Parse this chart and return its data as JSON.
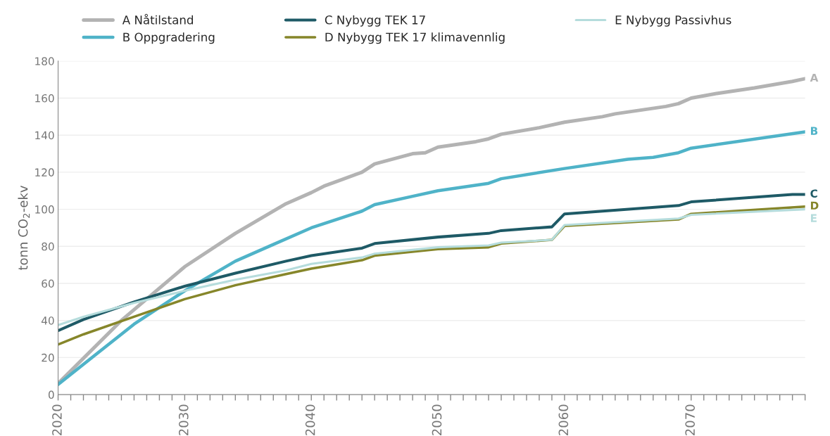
{
  "chart_data": {
    "type": "line",
    "ylabel": "tonn CO$_{2}$-ekv",
    "series": [
      {
        "name": "A Nåtilstand",
        "color": "#b3b3b3",
        "x": [
          2020,
          2025,
          2030,
          2034,
          2038,
          2040,
          2041,
          2044,
          2045,
          2048,
          2049,
          2050,
          2053,
          2054,
          2055,
          2058,
          2060,
          2063,
          2064,
          2068,
          2069,
          2070,
          2072,
          2075,
          2078,
          2079
        ],
        "values": [
          6,
          40,
          69,
          87,
          103,
          109,
          112.5,
          120,
          124.5,
          130,
          130.5,
          133.5,
          136.5,
          138,
          140.5,
          144,
          147,
          150,
          151.5,
          155.5,
          157,
          160,
          162.5,
          165.5,
          169,
          170.5
        ]
      },
      {
        "name": "B Oppgradering",
        "color": "#4fb3c8",
        "x": [
          2020,
          2026,
          2030,
          2034,
          2037,
          2040,
          2044,
          2045,
          2048,
          2050,
          2054,
          2055,
          2060,
          2065,
          2067,
          2069,
          2070,
          2079
        ],
        "values": [
          5.5,
          38,
          56,
          72,
          81,
          90,
          99,
          102.5,
          107,
          110,
          114,
          116.5,
          122,
          127,
          128,
          130.5,
          133,
          141.8
        ]
      },
      {
        "name": "C Nybygg TEK 17",
        "color": "#1e5a66",
        "x": [
          2020,
          2022,
          2026,
          2030,
          2034,
          2038,
          2040,
          2044,
          2045,
          2050,
          2054,
          2055,
          2059,
          2060,
          2069,
          2070,
          2078,
          2079
        ],
        "values": [
          34.5,
          40.5,
          50,
          58.5,
          65.5,
          72,
          75,
          79,
          81.5,
          85,
          87,
          88.5,
          90.5,
          97.5,
          102,
          104,
          108,
          108
        ]
      },
      {
        "name": "D Nybygg TEK 17 klimavennlig",
        "color": "#86862a",
        "x": [
          2020,
          2022,
          2026,
          2030,
          2034,
          2038,
          2040,
          2044,
          2045,
          2050,
          2054,
          2055,
          2059,
          2060,
          2069,
          2070,
          2079
        ],
        "values": [
          27,
          32.5,
          42,
          51.5,
          59,
          65,
          68,
          72.5,
          75,
          78.5,
          79.5,
          81.5,
          83.5,
          91,
          94.5,
          97.5,
          101.5
        ]
      },
      {
        "name": "E Nybygg Passivhus",
        "color": "#b5dcdc",
        "x": [
          2020,
          2022,
          2026,
          2030,
          2034,
          2038,
          2040,
          2044,
          2045,
          2050,
          2054,
          2055,
          2059,
          2060,
          2069,
          2070,
          2079
        ],
        "values": [
          37.5,
          42,
          49.5,
          56,
          62,
          67,
          70.5,
          74,
          76,
          79.5,
          80.5,
          82,
          83.5,
          91.5,
          95,
          97,
          100
        ]
      }
    ],
    "annotations": [
      "A",
      "B",
      "C",
      "D",
      "E"
    ],
    "xlim": [
      2020,
      2079
    ],
    "xticks": [
      2020,
      {
        "value": 2021,
        "label": null
      },
      {
        "value": 2022,
        "label": null
      },
      {
        "value": 2023,
        "label": null
      },
      {
        "value": 2024,
        "label": null
      },
      {
        "value": 2025,
        "label": null
      },
      {
        "value": 2026,
        "label": null
      },
      {
        "value": 2027,
        "label": null
      },
      {
        "value": 2028,
        "label": null
      },
      {
        "value": 2029,
        "label": null
      },
      2030,
      {
        "value": 2031,
        "label": null
      },
      {
        "value": 2032,
        "label": null
      },
      {
        "value": 2033,
        "label": null
      },
      {
        "value": 2034,
        "label": null
      },
      {
        "value": 2035,
        "label": null
      },
      {
        "value": 2036,
        "label": null
      },
      {
        "value": 2037,
        "label": null
      },
      {
        "value": 2038,
        "label": null
      },
      {
        "value": 2039,
        "label": null
      },
      2040,
      {
        "value": 2041,
        "label": null
      },
      {
        "value": 2042,
        "label": null
      },
      {
        "value": 2043,
        "label": null
      },
      {
        "value": 2044,
        "label": null
      },
      {
        "value": 2045,
        "label": null
      },
      {
        "value": 2046,
        "label": null
      },
      {
        "value": 2047,
        "label": null
      },
      {
        "value": 2048,
        "label": null
      },
      {
        "value": 2049,
        "label": null
      },
      2050,
      {
        "value": 2051,
        "label": null
      },
      {
        "value": 2052,
        "label": null
      },
      {
        "value": 2053,
        "label": null
      },
      {
        "value": 2054,
        "label": null
      },
      {
        "value": 2055,
        "label": null
      },
      {
        "value": 2056,
        "label": null
      },
      {
        "value": 2057,
        "label": null
      },
      {
        "value": 2058,
        "label": null
      },
      {
        "value": 2059,
        "label": null
      },
      2060,
      {
        "value": 2061,
        "label": null
      },
      {
        "value": 2062,
        "label": null
      },
      {
        "value": 2063,
        "label": null
      },
      {
        "value": 2064,
        "label": null
      },
      {
        "value": 2065,
        "label": null
      },
      {
        "value": 2066,
        "label": null
      },
      {
        "value": 2067,
        "label": null
      },
      {
        "value": 2068,
        "label": null
      },
      {
        "value": 2069,
        "label": null
      },
      2070,
      {
        "value": 2071,
        "label": null
      },
      {
        "value": 2072,
        "label": null
      },
      {
        "value": 2073,
        "label": null
      },
      {
        "value": 2074,
        "label": null
      },
      {
        "value": 2075,
        "label": null
      },
      {
        "value": 2076,
        "label": null
      },
      {
        "value": 2077,
        "label": null
      },
      {
        "value": 2078,
        "label": null
      },
      {
        "value": 2079,
        "label": null
      }
    ],
    "ylim": [
      0,
      180
    ],
    "yticks": [
      0,
      20,
      40,
      60,
      80,
      100,
      120,
      140,
      160,
      180
    ],
    "grid": "y",
    "legend": "top"
  }
}
